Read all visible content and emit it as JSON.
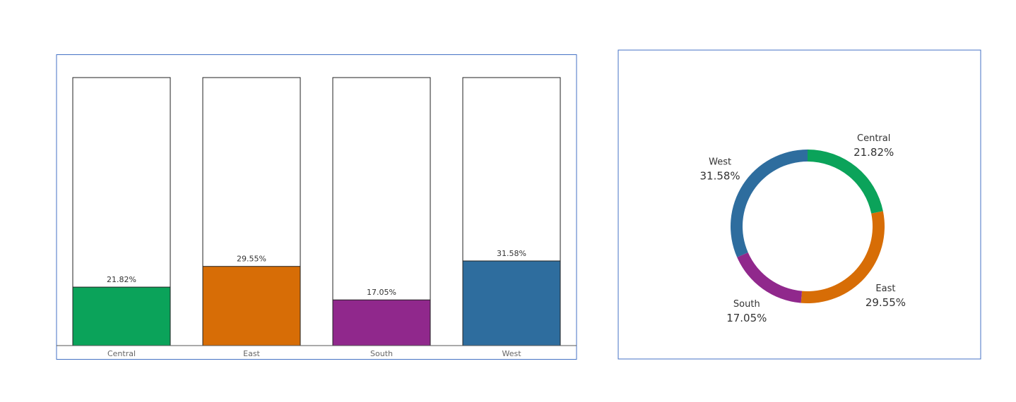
{
  "chart_data": [
    {
      "type": "bar",
      "categories": [
        "Central",
        "East",
        "South",
        "West"
      ],
      "values": [
        21.82,
        29.55,
        17.05,
        31.58
      ],
      "value_labels": [
        "21.82%",
        "29.55%",
        "17.05%",
        "31.58%"
      ],
      "colors": [
        "#0ba35a",
        "#d76d06",
        "#90288c",
        "#2e6d9e"
      ],
      "ylim": [
        0,
        100
      ]
    },
    {
      "type": "donut",
      "categories": [
        "Central",
        "East",
        "South",
        "West"
      ],
      "values": [
        21.82,
        29.55,
        17.05,
        31.58
      ],
      "value_labels": [
        "21.82%",
        "29.55%",
        "17.05%",
        "31.58%"
      ],
      "colors": [
        "#0ba35a",
        "#d76d06",
        "#90288c",
        "#2e6d9e"
      ]
    }
  ]
}
